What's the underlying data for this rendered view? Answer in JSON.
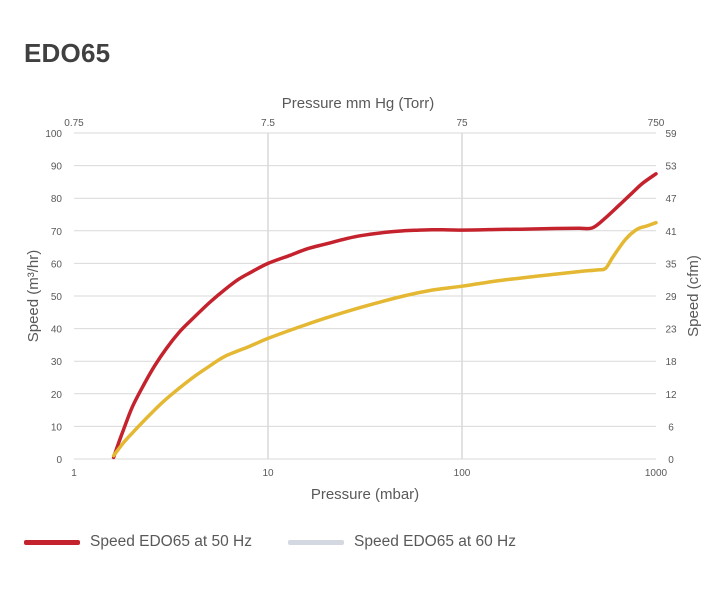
{
  "title": "EDO65",
  "chart_data": {
    "type": "line",
    "x_scale": "log",
    "xlim": [
      1,
      1000
    ],
    "ylim": [
      0,
      100
    ],
    "xlabel": "Pressure (mbar)",
    "ylabel": "Speed (m³/hr)",
    "x2label": "Pressure mm Hg (Torr)",
    "y2label": "Speed (cfm)",
    "x_ticks": [
      1,
      10,
      100,
      1000
    ],
    "x_tick_labels": [
      "1",
      "10",
      "100",
      "1000"
    ],
    "x2_ticks": [
      1,
      10,
      100,
      1000
    ],
    "x2_tick_labels": [
      "0.75",
      "7.5",
      "75",
      "750"
    ],
    "y_ticks": [
      0,
      10,
      20,
      30,
      40,
      50,
      60,
      70,
      80,
      90,
      100
    ],
    "y_tick_labels": [
      "0",
      "10",
      "20",
      "30",
      "40",
      "50",
      "60",
      "70",
      "80",
      "90",
      "100"
    ],
    "y2_ticks": [
      0,
      10,
      20,
      30,
      40,
      50,
      60,
      70,
      80,
      90,
      100
    ],
    "y2_tick_labels": [
      "0",
      "6",
      "12",
      "18",
      "23",
      "29",
      "35",
      "41",
      "47",
      "53",
      "59"
    ],
    "grid_vertical": true,
    "legend_position": "bottom",
    "series": [
      {
        "name": "Speed EDO65 at 50 Hz",
        "color": "#c4232e",
        "x": [
          1.6,
          1.7,
          1.8,
          2,
          2.3,
          2.6,
          3,
          3.5,
          4,
          5,
          6,
          7,
          8,
          10,
          13,
          16,
          20,
          25,
          30,
          40,
          50,
          60,
          70,
          80,
          100,
          150,
          200,
          300,
          400,
          470,
          550,
          650,
          750,
          850,
          1000
        ],
        "y": [
          0.5,
          5,
          9,
          16,
          23,
          28.5,
          34,
          39,
          42.5,
          48,
          52,
          55,
          57,
          60,
          62.5,
          64.5,
          66,
          67.5,
          68.5,
          69.5,
          70,
          70.2,
          70.3,
          70.3,
          70.2,
          70.4,
          70.5,
          70.7,
          70.8,
          70.9,
          74,
          78,
          81.5,
          84.5,
          87.5
        ]
      },
      {
        "name": "Speed EDO65 at 60 Hz",
        "color": "#e4b832",
        "x": [
          1.6,
          1.8,
          2,
          2.5,
          3,
          4,
          5,
          6,
          8,
          10,
          15,
          20,
          30,
          50,
          70,
          100,
          150,
          200,
          300,
          400,
          500,
          550,
          600,
          700,
          800,
          900,
          1000
        ],
        "y": [
          1,
          5,
          8,
          14,
          18.5,
          24.5,
          28.5,
          31.5,
          34.5,
          37,
          40.8,
          43.3,
          46.5,
          50,
          51.8,
          53,
          54.6,
          55.5,
          56.7,
          57.5,
          58,
          58.5,
          62,
          67.5,
          70.5,
          71.5,
          72.5
        ]
      }
    ]
  }
}
